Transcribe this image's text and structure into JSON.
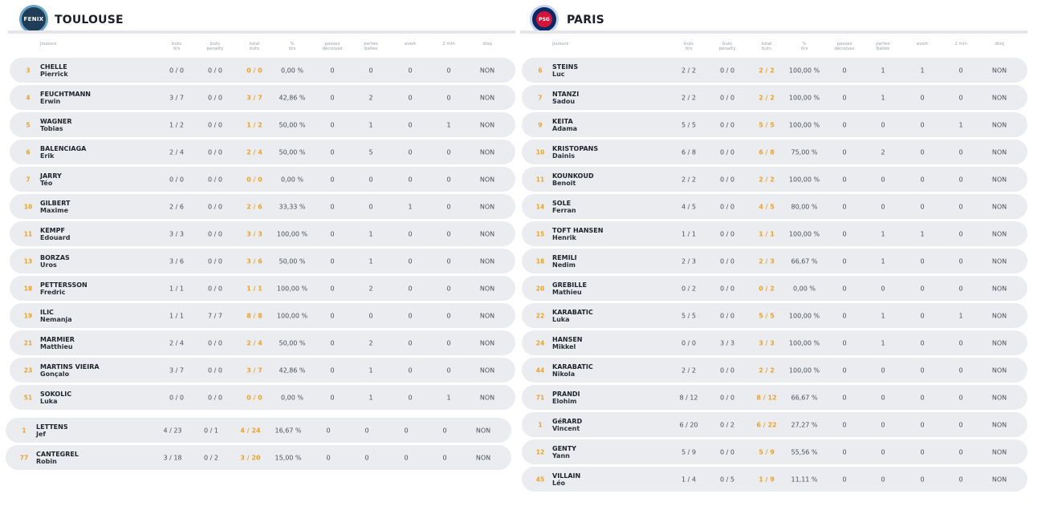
{
  "columns": [
    "joueurs",
    "buts\ntirs",
    "buts\npenalty",
    "total\nbuts",
    "%\ntirs",
    "passes\ndécisives",
    "pertes\nballes",
    "avert",
    "2 min",
    "disq"
  ],
  "teams": [
    {
      "name": "TOULOUSE",
      "logo_text": "FENIX",
      "players": [
        {
          "num": "3",
          "last": "CHELLE",
          "first": "Pierrick",
          "bt": "0 / 0",
          "bp": "0 / 0",
          "tot": "0 / 0",
          "pct": "0,00 %",
          "pd": "0",
          "pb": "0",
          "av": "0",
          "m2": "0",
          "dq": "NON"
        },
        {
          "num": "4",
          "last": "FEUCHTMANN",
          "first": "Erwin",
          "bt": "3 / 7",
          "bp": "0 / 0",
          "tot": "3 / 7",
          "pct": "42,86 %",
          "pd": "0",
          "pb": "2",
          "av": "0",
          "m2": "0",
          "dq": "NON"
        },
        {
          "num": "5",
          "last": "WAGNER",
          "first": "Tobias",
          "bt": "1 / 2",
          "bp": "0 / 0",
          "tot": "1 / 2",
          "pct": "50,00 %",
          "pd": "0",
          "pb": "1",
          "av": "0",
          "m2": "1",
          "dq": "NON"
        },
        {
          "num": "6",
          "last": "BALENCIAGA",
          "first": "Erik",
          "bt": "2 / 4",
          "bp": "0 / 0",
          "tot": "2 / 4",
          "pct": "50,00 %",
          "pd": "0",
          "pb": "5",
          "av": "0",
          "m2": "0",
          "dq": "NON"
        },
        {
          "num": "7",
          "last": "JARRY",
          "first": "Téo",
          "bt": "0 / 0",
          "bp": "0 / 0",
          "tot": "0 / 0",
          "pct": "0,00 %",
          "pd": "0",
          "pb": "0",
          "av": "0",
          "m2": "0",
          "dq": "NON"
        },
        {
          "num": "10",
          "last": "GILBERT",
          "first": "Maxime",
          "bt": "2 / 6",
          "bp": "0 / 0",
          "tot": "2 / 6",
          "pct": "33,33 %",
          "pd": "0",
          "pb": "0",
          "av": "1",
          "m2": "0",
          "dq": "NON"
        },
        {
          "num": "11",
          "last": "KEMPF",
          "first": "Edouard",
          "bt": "3 / 3",
          "bp": "0 / 0",
          "tot": "3 / 3",
          "pct": "100,00 %",
          "pd": "0",
          "pb": "1",
          "av": "0",
          "m2": "0",
          "dq": "NON"
        },
        {
          "num": "13",
          "last": "BORZAS",
          "first": "Uros",
          "bt": "3 / 6",
          "bp": "0 / 0",
          "tot": "3 / 6",
          "pct": "50,00 %",
          "pd": "0",
          "pb": "1",
          "av": "0",
          "m2": "0",
          "dq": "NON"
        },
        {
          "num": "18",
          "last": "PETTERSSON",
          "first": "Fredric",
          "bt": "1 / 1",
          "bp": "0 / 0",
          "tot": "1 / 1",
          "pct": "100,00 %",
          "pd": "0",
          "pb": "2",
          "av": "0",
          "m2": "0",
          "dq": "NON"
        },
        {
          "num": "19",
          "last": "ILIC",
          "first": "Nemanja",
          "bt": "1 / 1",
          "bp": "7 / 7",
          "tot": "8 / 8",
          "pct": "100,00 %",
          "pd": "0",
          "pb": "0",
          "av": "0",
          "m2": "0",
          "dq": "NON"
        },
        {
          "num": "21",
          "last": "MARMIER",
          "first": "Matthieu",
          "bt": "2 / 4",
          "bp": "0 / 0",
          "tot": "2 / 4",
          "pct": "50,00 %",
          "pd": "0",
          "pb": "2",
          "av": "0",
          "m2": "0",
          "dq": "NON"
        },
        {
          "num": "23",
          "last": "MARTINS VIEIRA",
          "first": "Gonçalo",
          "bt": "3 / 7",
          "bp": "0 / 0",
          "tot": "3 / 7",
          "pct": "42,86 %",
          "pd": "0",
          "pb": "1",
          "av": "0",
          "m2": "0",
          "dq": "NON"
        },
        {
          "num": "51",
          "last": "SOKOLIC",
          "first": "Luka",
          "bt": "0 / 0",
          "bp": "0 / 0",
          "tot": "0 / 0",
          "pct": "0,00 %",
          "pd": "0",
          "pb": "1",
          "av": "0",
          "m2": "1",
          "dq": "NON"
        }
      ],
      "goalkeepers": [
        {
          "num": "1",
          "last": "LETTENS",
          "first": "Jef",
          "bt": "4 / 23",
          "bp": "0 / 1",
          "tot": "4 / 24",
          "pct": "16,67 %",
          "pd": "0",
          "pb": "0",
          "av": "0",
          "m2": "0",
          "dq": "NON"
        },
        {
          "num": "77",
          "last": "CANTEGREL",
          "first": "Robin",
          "bt": "3 / 18",
          "bp": "0 / 2",
          "tot": "3 / 20",
          "pct": "15,00 %",
          "pd": "0",
          "pb": "0",
          "av": "0",
          "m2": "0",
          "dq": "NON"
        }
      ]
    },
    {
      "name": "PARIS",
      "logo_text": "PSG",
      "players": [
        {
          "num": "6",
          "last": "STEINS",
          "first": "Luc",
          "bt": "2 / 2",
          "bp": "0 / 0",
          "tot": "2 / 2",
          "pct": "100,00 %",
          "pd": "0",
          "pb": "1",
          "av": "1",
          "m2": "0",
          "dq": "NON"
        },
        {
          "num": "7",
          "last": "NTANZI",
          "first": "Sadou",
          "bt": "2 / 2",
          "bp": "0 / 0",
          "tot": "2 / 2",
          "pct": "100,00 %",
          "pd": "0",
          "pb": "1",
          "av": "0",
          "m2": "0",
          "dq": "NON"
        },
        {
          "num": "9",
          "last": "KEITA",
          "first": "Adama",
          "bt": "5 / 5",
          "bp": "0 / 0",
          "tot": "5 / 5",
          "pct": "100,00 %",
          "pd": "0",
          "pb": "0",
          "av": "0",
          "m2": "1",
          "dq": "NON"
        },
        {
          "num": "10",
          "last": "KRISTOPANS",
          "first": "Dainis",
          "bt": "6 / 8",
          "bp": "0 / 0",
          "tot": "6 / 8",
          "pct": "75,00 %",
          "pd": "0",
          "pb": "2",
          "av": "0",
          "m2": "0",
          "dq": "NON"
        },
        {
          "num": "11",
          "last": "KOUNKOUD",
          "first": "Benoit",
          "bt": "2 / 2",
          "bp": "0 / 0",
          "tot": "2 / 2",
          "pct": "100,00 %",
          "pd": "0",
          "pb": "0",
          "av": "0",
          "m2": "0",
          "dq": "NON"
        },
        {
          "num": "14",
          "last": "SOLE",
          "first": "Ferran",
          "bt": "4 / 5",
          "bp": "0 / 0",
          "tot": "4 / 5",
          "pct": "80,00 %",
          "pd": "0",
          "pb": "0",
          "av": "0",
          "m2": "0",
          "dq": "NON"
        },
        {
          "num": "15",
          "last": "TOFT HANSEN",
          "first": "Henrik",
          "bt": "1 / 1",
          "bp": "0 / 0",
          "tot": "1 / 1",
          "pct": "100,00 %",
          "pd": "0",
          "pb": "1",
          "av": "1",
          "m2": "0",
          "dq": "NON"
        },
        {
          "num": "18",
          "last": "REMILI",
          "first": "Nedim",
          "bt": "2 / 3",
          "bp": "0 / 0",
          "tot": "2 / 3",
          "pct": "66,67 %",
          "pd": "0",
          "pb": "1",
          "av": "0",
          "m2": "0",
          "dq": "NON"
        },
        {
          "num": "20",
          "last": "GREBILLE",
          "first": "Mathieu",
          "bt": "0 / 2",
          "bp": "0 / 0",
          "tot": "0 / 2",
          "pct": "0,00 %",
          "pd": "0",
          "pb": "0",
          "av": "0",
          "m2": "0",
          "dq": "NON"
        },
        {
          "num": "22",
          "last": "KARABATIC",
          "first": "Luka",
          "bt": "5 / 5",
          "bp": "0 / 0",
          "tot": "5 / 5",
          "pct": "100,00 %",
          "pd": "0",
          "pb": "1",
          "av": "0",
          "m2": "1",
          "dq": "NON"
        },
        {
          "num": "24",
          "last": "HANSEN",
          "first": "Mikkel",
          "bt": "0 / 0",
          "bp": "3 / 3",
          "tot": "3 / 3",
          "pct": "100,00 %",
          "pd": "0",
          "pb": "1",
          "av": "0",
          "m2": "0",
          "dq": "NON"
        },
        {
          "num": "44",
          "last": "KARABATIC",
          "first": "Nikola",
          "bt": "2 / 2",
          "bp": "0 / 0",
          "tot": "2 / 2",
          "pct": "100,00 %",
          "pd": "0",
          "pb": "0",
          "av": "0",
          "m2": "0",
          "dq": "NON"
        },
        {
          "num": "71",
          "last": "PRANDI",
          "first": "Elohim",
          "bt": "8 / 12",
          "bp": "0 / 0",
          "tot": "8 / 12",
          "pct": "66,67 %",
          "pd": "0",
          "pb": "0",
          "av": "0",
          "m2": "0",
          "dq": "NON"
        },
        {
          "num": "1",
          "last": "GéRARD",
          "first": "Vincent",
          "bt": "6 / 20",
          "bp": "0 / 2",
          "tot": "6 / 22",
          "pct": "27,27 %",
          "pd": "0",
          "pb": "0",
          "av": "0",
          "m2": "0",
          "dq": "NON"
        },
        {
          "num": "12",
          "last": "GENTY",
          "first": "Yann",
          "bt": "5 / 9",
          "bp": "0 / 0",
          "tot": "5 / 9",
          "pct": "55,56 %",
          "pd": "0",
          "pb": "0",
          "av": "0",
          "m2": "0",
          "dq": "NON"
        },
        {
          "num": "45",
          "last": "VILLAIN",
          "first": "Léo",
          "bt": "1 / 4",
          "bp": "0 / 5",
          "tot": "1 / 9",
          "pct": "11,11 %",
          "pd": "0",
          "pb": "0",
          "av": "0",
          "m2": "0",
          "dq": "NON"
        }
      ],
      "goalkeepers": []
    }
  ]
}
